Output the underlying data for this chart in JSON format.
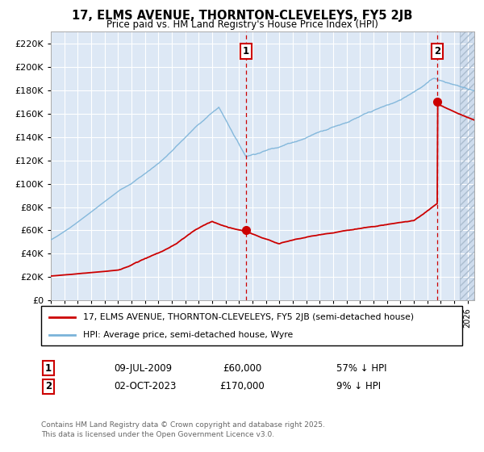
{
  "title": "17, ELMS AVENUE, THORNTON-CLEVELEYS, FY5 2JB",
  "subtitle": "Price paid vs. HM Land Registry's House Price Index (HPI)",
  "ylim": [
    0,
    230000
  ],
  "xlim_start": 1995.0,
  "xlim_end": 2026.5,
  "background_color": "#dde8f5",
  "grid_color": "#ffffff",
  "legend_entry1": "17, ELMS AVENUE, THORNTON-CLEVELEYS, FY5 2JB (semi-detached house)",
  "legend_entry2": "HPI: Average price, semi-detached house, Wyre",
  "footnote": "Contains HM Land Registry data © Crown copyright and database right 2025.\nThis data is licensed under the Open Government Licence v3.0.",
  "sale1_date": "09-JUL-2009",
  "sale1_price": "£60,000",
  "sale1_hpi": "57% ↓ HPI",
  "sale1_x": 2009.52,
  "sale1_y": 60000,
  "sale2_date": "02-OCT-2023",
  "sale2_price": "£170,000",
  "sale2_hpi": "9% ↓ HPI",
  "sale2_x": 2023.75,
  "sale2_y": 170000,
  "hpi_color": "#7ab3d9",
  "price_color": "#cc0000",
  "dashed_line_color": "#cc0000",
  "hatch_start": 2025.42
}
